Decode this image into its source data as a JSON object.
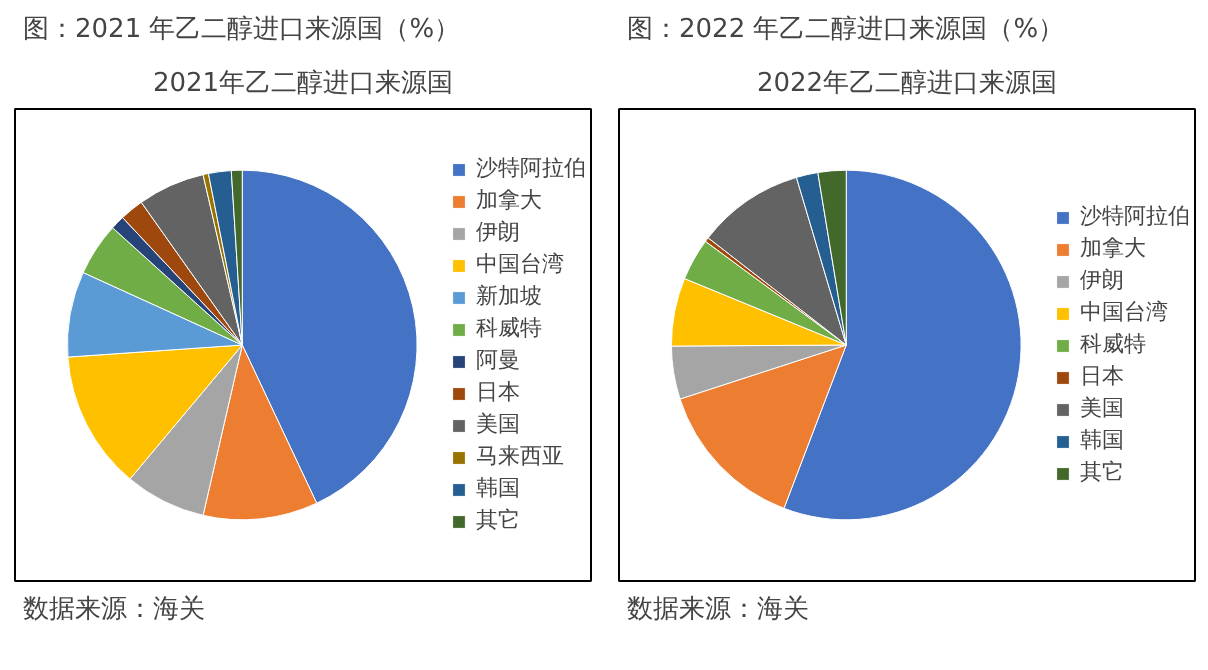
{
  "chart_data": [
    {
      "type": "pie",
      "title": "图：2021 年乙二醇进口来源国（%）",
      "subtitle": "2021年乙二醇进口来源国",
      "annotations": [
        "数据来源：海关"
      ],
      "legend": "right",
      "categories": [
        "沙特阿拉伯",
        "加拿大",
        "伊朗",
        "中国台湾",
        "新加坡",
        "科威特",
        "阿曼",
        "日本",
        "美国",
        "马来西亚",
        "韩国",
        "其它"
      ],
      "values": [
        43.0,
        10.6,
        7.5,
        12.8,
        7.9,
        4.9,
        1.3,
        2.2,
        6.2,
        0.5,
        2.1,
        1.0
      ],
      "colors": [
        "#4472c4",
        "#ed7d31",
        "#a5a5a5",
        "#ffc000",
        "#5b9bd5",
        "#70ad47",
        "#264478",
        "#9e480e",
        "#636363",
        "#997300",
        "#255e91",
        "#43682b"
      ]
    },
    {
      "type": "pie",
      "title": "图：2022 年乙二醇进口来源国（%）",
      "subtitle": "2022年乙二醇进口来源国",
      "annotations": [
        "数据来源：海关"
      ],
      "legend": "right",
      "categories": [
        "沙特阿拉伯",
        "加拿大",
        "伊朗",
        "中国台湾",
        "科威特",
        "日本",
        "美国",
        "韩国",
        "其它"
      ],
      "values": [
        55.8,
        14.2,
        4.9,
        6.3,
        3.9,
        0.4,
        9.9,
        2.0,
        2.6
      ],
      "colors": [
        "#4472c4",
        "#ed7d31",
        "#a5a5a5",
        "#ffc000",
        "#70ad47",
        "#9e480e",
        "#636363",
        "#255e91",
        "#43682b"
      ]
    }
  ]
}
